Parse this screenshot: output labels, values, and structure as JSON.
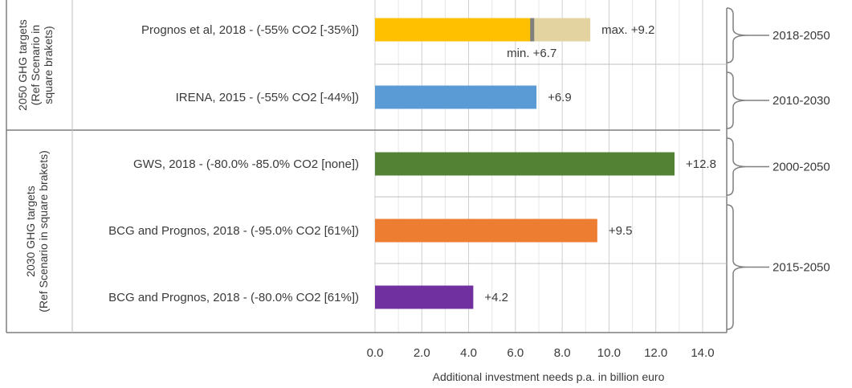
{
  "chart_data": {
    "type": "bar",
    "orientation": "horizontal",
    "xlabel": "Additional investment needs p.a. in billion euro",
    "xlim": [
      0,
      14
    ],
    "xticks": [
      "0.0",
      "2.0",
      "4.0",
      "6.0",
      "8.0",
      "10.0",
      "12.0",
      "14.0"
    ],
    "grid": true,
    "categories": [
      "Prognos et al, 2018 - (-55% CO2 [-35%])",
      "IRENA, 2015 - (-55% CO2 [-44%])",
      "GWS, 2018 - (-80.0% -85.0% CO2 [none])",
      "BCG and Prognos, 2018 - (-95.0% CO2 [61%])",
      "BCG and Prognos, 2018 - (-80.0% CO2 [61%])"
    ],
    "values": [
      6.7,
      6.9,
      12.8,
      9.5,
      4.2
    ],
    "range_max": [
      9.2,
      null,
      null,
      null,
      null
    ],
    "value_labels": [
      "min. +6.7",
      "+6.9",
      "+12.8",
      "+9.5",
      "+4.2"
    ],
    "range_label": "max. +9.2",
    "colors": [
      "#ffc000",
      "#5b9bd5",
      "#548235",
      "#ed7d31",
      "#7030a0"
    ],
    "range_color": "#e2d3a0",
    "min_marker_color": "#7f7f7f",
    "groups": [
      {
        "label": "2050 GHG targets (Ref Scenario in square brakets)",
        "lines": [
          "2050 GHG targets",
          "(Ref Scenario in",
          "square brakets)"
        ],
        "rows": [
          0,
          1
        ]
      },
      {
        "label": "2030 GHG targets (Ref Scenario in square brakets)",
        "lines": [
          "2030 GHG targets",
          "(Ref Scenario in square brakets)"
        ],
        "rows": [
          2,
          3,
          4
        ]
      }
    ],
    "periods": [
      {
        "label": "2018-2050",
        "rows": [
          0
        ]
      },
      {
        "label": "2010-2030",
        "rows": [
          1
        ]
      },
      {
        "label": "2000-2050",
        "rows": [
          2
        ]
      },
      {
        "label": "2015-2050",
        "rows": [
          3,
          4
        ]
      }
    ]
  }
}
